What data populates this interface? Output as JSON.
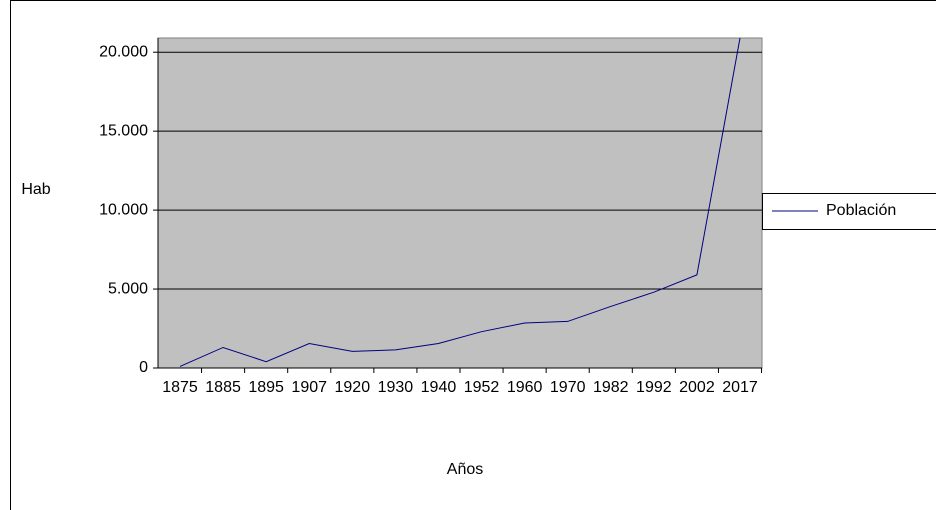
{
  "chart_data": {
    "type": "line",
    "x_label": "Años",
    "y_label": "Hab",
    "categories": [
      "1875",
      "1885",
      "1895",
      "1907",
      "1920",
      "1930",
      "1940",
      "1952",
      "1960",
      "1970",
      "1982",
      "1992",
      "2002",
      "2017"
    ],
    "series": [
      {
        "name": "Población",
        "color": "#000080",
        "values": [
          100,
          1300,
          400,
          1550,
          1050,
          1150,
          1550,
          2300,
          2850,
          2950,
          3900,
          4800,
          5900,
          20900
        ]
      }
    ],
    "ylim": [
      0,
      20900
    ],
    "yticks": [
      0,
      {
        "value": 5000,
        "label": "5.000"
      },
      {
        "value": 10000,
        "label": "10.000"
      },
      {
        "value": 15000,
        "label": "15.000"
      },
      {
        "value": 20000,
        "label": "20.000"
      }
    ],
    "grid": true,
    "plot_background": "#c0c0c0",
    "legend": "right"
  }
}
